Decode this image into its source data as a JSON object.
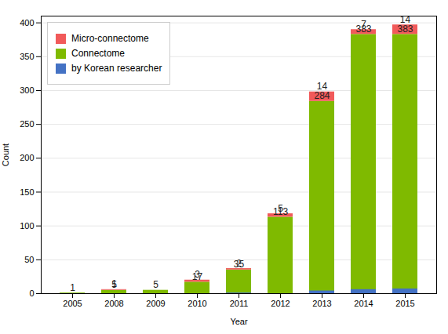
{
  "chart_data": {
    "type": "bar",
    "categories": [
      "2005",
      "2008",
      "2009",
      "2010",
      "2011",
      "2012",
      "2013",
      "2014",
      "2015"
    ],
    "series": [
      {
        "name": "Micro-connectome",
        "color": "#F15A5A",
        "type": "stacked_bar",
        "values": [
          0,
          1,
          0,
          3,
          2,
          5,
          14,
          7,
          14
        ],
        "value_labels": [
          null,
          "1",
          null,
          "3",
          "2",
          "5",
          "14",
          "7",
          "14"
        ]
      },
      {
        "name": "Connectome",
        "color": "#7FBA00",
        "type": "stacked_bar",
        "values": [
          1,
          5,
          5,
          17,
          35,
          113,
          284,
          383,
          383
        ]
      },
      {
        "name": "by Korean researcher",
        "color": "#4472C4",
        "type": "bar",
        "values": [
          0,
          0,
          0,
          0,
          1,
          0,
          4,
          6,
          7
        ]
      }
    ],
    "xlabel": "Year",
    "ylabel": "Count",
    "ylim": [
      0,
      410
    ],
    "yticks": [
      0,
      50,
      100,
      150,
      200,
      250,
      300,
      350,
      400
    ],
    "grid": true,
    "legend": "upper left",
    "stacked": true,
    "data_labels": true
  }
}
